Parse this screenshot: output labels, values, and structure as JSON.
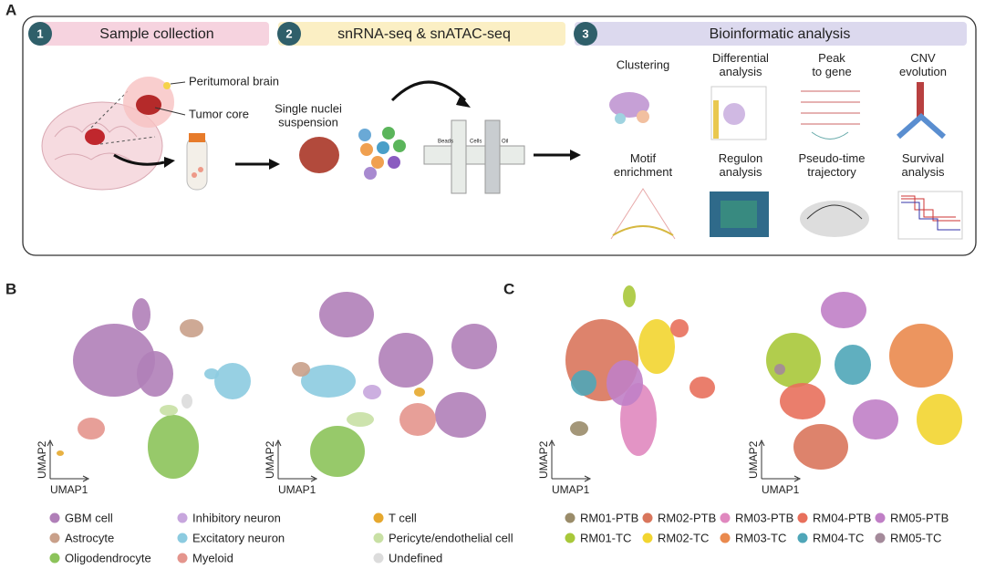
{
  "panelA": {
    "label": "A",
    "steps": [
      {
        "number": "1",
        "title": "Sample collection"
      },
      {
        "number": "2",
        "title": "snRNA-seq & snATAC-seq"
      },
      {
        "number": "3",
        "title": "Bioinformatic analysis"
      }
    ],
    "labels": {
      "peritumoral": "Peritumoral brain",
      "tumor_core": "Tumor core",
      "suspension": [
        "Single nuclei",
        "suspension"
      ],
      "chip": [
        "Beads",
        "Cells",
        "Oil"
      ]
    },
    "analyses": [
      {
        "lines": [
          "Clustering"
        ]
      },
      {
        "lines": [
          "Differential",
          "analysis"
        ]
      },
      {
        "lines": [
          "Peak",
          "to gene"
        ]
      },
      {
        "lines": [
          "CNV",
          "evolution"
        ]
      },
      {
        "lines": [
          "Motif",
          "enrichment"
        ]
      },
      {
        "lines": [
          "Regulon",
          "analysis"
        ]
      },
      {
        "lines": [
          "Pseudo-time",
          "trajectory"
        ]
      },
      {
        "lines": [
          "Survival",
          "analysis"
        ]
      }
    ]
  },
  "panelB": {
    "label": "B",
    "axes": {
      "x": "UMAP1",
      "y": "UMAP2"
    },
    "legend": [
      {
        "name": "GBM cell",
        "color": "#b07fb8"
      },
      {
        "name": "Astrocyte",
        "color": "#c9a08a"
      },
      {
        "name": "Oligodendrocyte",
        "color": "#8cc35a"
      },
      {
        "name": "Inhibitory neuron",
        "color": "#c7a6dd"
      },
      {
        "name": "Excitatory neuron",
        "color": "#8ccbe0"
      },
      {
        "name": "Myeloid",
        "color": "#e4958d"
      },
      {
        "name": "T cell",
        "color": "#e6a82e"
      },
      {
        "name": "Pericyte/endothelial cell",
        "color": "#c8e0a4"
      },
      {
        "name": "Undefined",
        "color": "#dcdcdc"
      }
    ]
  },
  "panelC": {
    "label": "C",
    "axes": {
      "x": "UMAP1",
      "y": "UMAP2"
    },
    "legend": [
      {
        "name": "RM01-PTB",
        "color": "#9a8c6a"
      },
      {
        "name": "RM02-PTB",
        "color": "#d9765c"
      },
      {
        "name": "RM03-PTB",
        "color": "#e088bf"
      },
      {
        "name": "RM04-PTB",
        "color": "#e8705c"
      },
      {
        "name": "RM05-PTB",
        "color": "#c07fc6"
      },
      {
        "name": "RM01-TC",
        "color": "#a8c83a"
      },
      {
        "name": "RM02-TC",
        "color": "#f2d530"
      },
      {
        "name": "RM03-TC",
        "color": "#ea8a4e"
      },
      {
        "name": "RM04-TC",
        "color": "#4fa6b8"
      },
      {
        "name": "RM05-TC",
        "color": "#a48a9a"
      }
    ]
  }
}
